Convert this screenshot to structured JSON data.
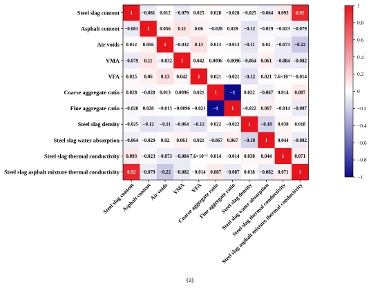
{
  "caption": "(a)",
  "chart_data": {
    "type": "heatmap",
    "variables": [
      "Steel slag content",
      "Asphalt content",
      "Air voids",
      "VMA",
      "VFA",
      "Coarse aggregate ratio",
      "Fine aggregate ratio",
      "Steel slag density",
      "Steel slag water absorption",
      "Steel slag thermal conductivity",
      "Steel slag asphalt mixture thermal conductivity"
    ],
    "values": [
      [
        1,
        -0.081,
        0.012,
        -0.079,
        0.025,
        0.028,
        -0.028,
        -0.025,
        -0.064,
        0.093,
        0.92
      ],
      [
        -0.081,
        1,
        0.056,
        0.11,
        0.06,
        -0.028,
        0.028,
        -0.12,
        -0.029,
        -0.023,
        -0.079
      ],
      [
        0.012,
        0.056,
        1,
        -0.032,
        0.13,
        0.013,
        -0.013,
        -0.11,
        0.02,
        -0.073,
        -0.22
      ],
      [
        -0.079,
        0.11,
        -0.032,
        1,
        0.042,
        0.0096,
        -0.0096,
        -0.064,
        0.061,
        -0.084,
        -0.082
      ],
      [
        0.025,
        0.06,
        0.13,
        0.042,
        1,
        0.021,
        -0.021,
        -0.12,
        0.021,
        0.0076,
        -0.014
      ],
      [
        0.028,
        -0.028,
        0.013,
        0.0096,
        0.021,
        1,
        -1,
        0.022,
        -0.067,
        0.014,
        0.087
      ],
      [
        -0.028,
        0.028,
        -0.013,
        -0.0096,
        -0.021,
        -1,
        1,
        -0.022,
        0.067,
        -0.014,
        -0.087
      ],
      [
        -0.025,
        -0.12,
        -0.11,
        -0.064,
        -0.12,
        0.022,
        -0.022,
        1,
        -0.18,
        0.038,
        0.018
      ],
      [
        -0.064,
        -0.029,
        0.02,
        0.061,
        0.021,
        -0.067,
        0.067,
        -0.18,
        1,
        0.044,
        -0.082
      ],
      [
        0.093,
        -0.023,
        -0.073,
        -0.084,
        0.0076,
        0.014,
        -0.014,
        0.038,
        0.044,
        1,
        0.071
      ],
      [
        0.92,
        -0.079,
        -0.22,
        -0.082,
        -0.014,
        0.087,
        -0.087,
        0.018,
        -0.082,
        0.071,
        1
      ]
    ],
    "labels": [
      [
        "1",
        "−0.081",
        "0.012",
        "−0.079",
        "0.025",
        "0.028",
        "−0.028",
        "−0.025",
        "−0.064",
        "0.093",
        "0.92"
      ],
      [
        "−0.081",
        "1",
        "0.056",
        "0.11",
        "0.06",
        "−0.028",
        "0.028",
        "−0.12",
        "−0.029",
        "−0.023",
        "−0.079"
      ],
      [
        "0.012",
        "0.056",
        "1",
        "−0.032",
        "0.13",
        "0.013",
        "−0.013",
        "−0.11",
        "0.02",
        "−0.073",
        "−0.22"
      ],
      [
        "−0.079",
        "0.11",
        "−0.032",
        "1",
        "0.042",
        "0.0096",
        "−0.0096",
        "−0.064",
        "0.061",
        "−0.084",
        "−0.082"
      ],
      [
        "0.025",
        "0.06",
        "0.13",
        "0.042",
        "1",
        "0.021",
        "−0.021",
        "−0.12",
        "0.021",
        "7.6×10⁻³",
        "−0.014"
      ],
      [
        "0.028",
        "−0.028",
        "0.013",
        "0.0096",
        "0.021",
        "1",
        "−1",
        "0.022",
        "−0.067",
        "0.014",
        "0.087"
      ],
      [
        "−0.028",
        "0.028",
        "−0.013",
        "−0.0096",
        "−0.021",
        "−1",
        "1",
        "−0.022",
        "0.067",
        "−0.014",
        "−0.087"
      ],
      [
        "−0.025",
        "−0.12",
        "−0.11",
        "−0.064",
        "−0.12",
        "0.022",
        "−0.022",
        "1",
        "−0.18",
        "0.038",
        "0.018"
      ],
      [
        "−0.064",
        "−0.029",
        "0.02",
        "0.061",
        "0.021",
        "−0.067",
        "0.067",
        "−0.18",
        "1",
        "0.044",
        "−0.082"
      ],
      [
        "0.093",
        "−0.023",
        "−0.073",
        "−0.084",
        "7.6×10⁻³",
        "0.014",
        "−0.014",
        "0.038",
        "0.044",
        "1",
        "0.071"
      ],
      [
        "0.92",
        "−0.079",
        "−0.22",
        "−0.082",
        "−0.014",
        "0.087",
        "−0.087",
        "0.018",
        "−0.082",
        "0.071",
        "1"
      ]
    ],
    "zlim": [
      -1,
      1
    ],
    "colorbar": {
      "placement": "right",
      "ticks": [
        1,
        0.8,
        0.6,
        0.4,
        0.2,
        0,
        -0.2,
        -0.4,
        -0.6,
        -0.8,
        -1
      ],
      "tick_labels": [
        "1",
        "0.8",
        "0.6",
        "0.4",
        "0.2",
        "0",
        "−0.2",
        "−0.4",
        "−0.6",
        "−0.8",
        "−1"
      ]
    },
    "colors": {
      "positive": "#E9141C",
      "zero": "#FFFFFF",
      "negative": "#0B0B8F",
      "text_on_dark": "#FFFFFF",
      "text_on_light": "#000000"
    }
  }
}
